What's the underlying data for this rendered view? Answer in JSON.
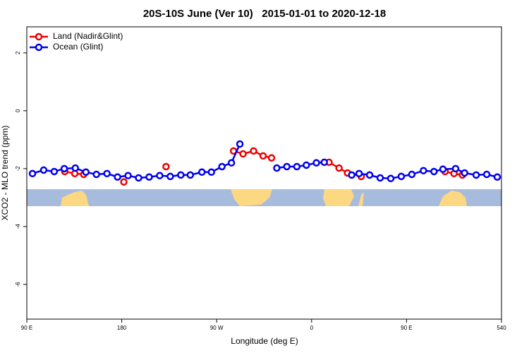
{
  "chart_data": {
    "type": "line",
    "title": "20S-10S June (Ver 10)   2015-01-01 to 2020-12-18",
    "x_label": "Longitude (deg E)",
    "y_label": "XCO2 - MLO trend (ppm)",
    "xlim": [
      90,
      540
    ],
    "ylim": [
      -7.2,
      2.9
    ],
    "xticks": [
      {
        "value": 90,
        "label": "90 E"
      },
      180,
      {
        "value": 270,
        "label": "90 W"
      },
      {
        "value": 360,
        "label": "0"
      },
      {
        "value": 450,
        "label": "90 E"
      },
      540
    ],
    "yticks": [
      2,
      0,
      -2,
      -4,
      -6
    ],
    "legend": "top-left",
    "series": [
      {
        "name": "Land (Nadir&Glint)",
        "color": "#ee0000",
        "x": [
          126,
          135.5,
          144,
          163,
          182,
          202,
          222,
          254,
          286,
          295,
          305,
          314,
          322,
          349,
          376.5,
          386,
          394,
          407,
          446,
          486.5,
          495,
          503
        ],
        "values": [
          -2.1,
          -2.17,
          -2.2,
          null,
          -2.46,
          null,
          -1.93,
          null,
          -1.39,
          -1.49,
          -1.39,
          -1.56,
          -1.63,
          null,
          -1.78,
          -1.98,
          -2.15,
          -2.27,
          null,
          -2.1,
          -2.17,
          -2.22
        ]
      },
      {
        "name": "Ocean (Glint)",
        "color": "#0000ee",
        "x": [
          95.4,
          106,
          116,
          125.5,
          136,
          146,
          156,
          166,
          176,
          186,
          196,
          206,
          216,
          226,
          236,
          245,
          256,
          265,
          275,
          284,
          292,
          310,
          327,
          336.5,
          346,
          355,
          364.5,
          372,
          385,
          398,
          405,
          415,
          425,
          435,
          445,
          455,
          466,
          476,
          484.5,
          496.5,
          505,
          516,
          526,
          536
        ],
        "values": [
          -2.17,
          -2.05,
          -2.1,
          -2.0,
          -1.98,
          -2.12,
          -2.2,
          -2.17,
          -2.29,
          -2.24,
          -2.32,
          -2.29,
          -2.24,
          -2.27,
          -2.22,
          -2.22,
          -2.12,
          -2.12,
          -1.93,
          -1.8,
          -1.15,
          null,
          -1.98,
          -1.93,
          -1.93,
          -1.88,
          -1.8,
          -1.78,
          null,
          -2.22,
          -2.17,
          -2.22,
          -2.32,
          -2.34,
          -2.27,
          -2.2,
          -2.07,
          -2.1,
          -2.02,
          -2.0,
          -2.15,
          -2.22,
          -2.2,
          -2.29
        ]
      }
    ]
  }
}
